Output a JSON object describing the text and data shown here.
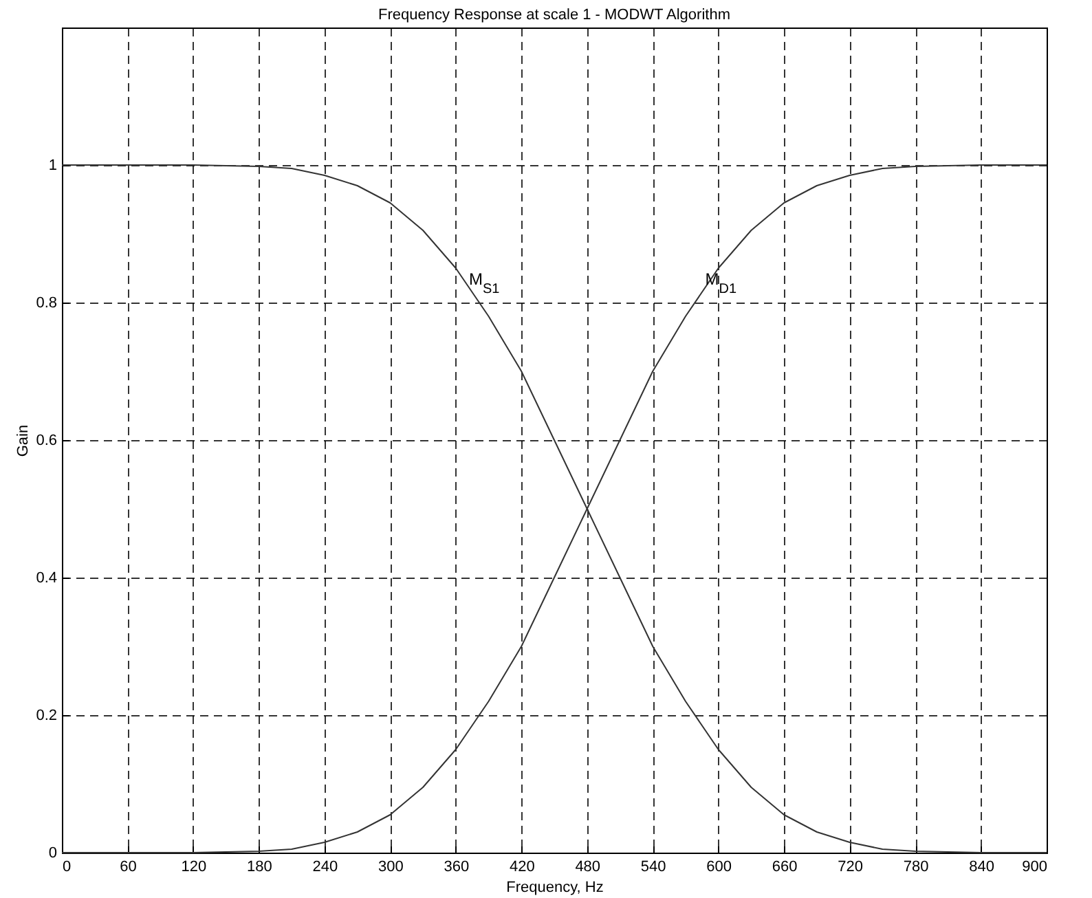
{
  "chart_data": {
    "type": "line",
    "title": "Frequency Response at scale 1 - MODWT Algorithm",
    "xlabel": "Frequency, Hz",
    "ylabel": "Gain",
    "x": [
      0,
      60,
      120,
      180,
      210,
      240,
      270,
      300,
      330,
      360,
      390,
      420,
      450,
      480,
      510,
      540,
      570,
      600,
      630,
      660,
      690,
      720,
      750,
      780,
      840,
      900
    ],
    "series": [
      {
        "color": "#333333",
        "values": [
          1,
          1,
          1,
          0.998,
          0.995,
          0.985,
          0.97,
          0.945,
          0.905,
          0.85,
          0.78,
          0.7,
          0.6,
          0.5,
          0.4,
          0.3,
          0.22,
          0.15,
          0.095,
          0.055,
          0.03,
          0.015,
          0.005,
          0.002,
          0,
          0
        ]
      },
      {
        "color": "#333333",
        "values": [
          0,
          0,
          0,
          0.002,
          0.005,
          0.015,
          0.03,
          0.055,
          0.095,
          0.15,
          0.22,
          0.3,
          0.4,
          0.5,
          0.6,
          0.7,
          0.78,
          0.85,
          0.905,
          0.945,
          0.97,
          0.985,
          0.995,
          0.998,
          1,
          1
        ]
      }
    ],
    "annotations": [
      {
        "text": "M$_{S1}$",
        "x": 372,
        "y": 0.82
      },
      {
        "text": "M$_{D1}$",
        "x": 588,
        "y": 0.82
      }
    ],
    "xlim": [
      0,
      900
    ],
    "xticks": [
      0,
      60,
      120,
      180,
      240,
      300,
      360,
      420,
      480,
      540,
      600,
      660,
      720,
      780,
      840,
      900
    ],
    "ylim": [
      0,
      1.2
    ],
    "yticks": [
      0,
      0.2,
      0.4,
      0.6,
      0.8,
      1
    ],
    "grid": true,
    "legend": false,
    "marker": "none",
    "line_style": "solid"
  }
}
